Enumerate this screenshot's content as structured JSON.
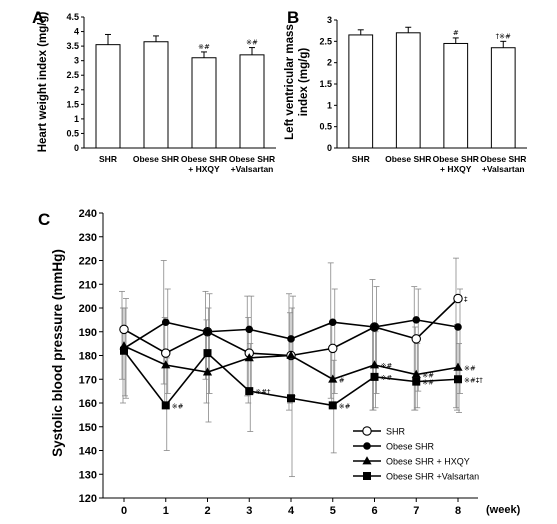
{
  "figure": {
    "panel_a": "A",
    "panel_b": "B",
    "panel_c": "C"
  },
  "chart_data": [
    {
      "type": "bar",
      "ylabel": "Heart weight index (mg/g)",
      "categories": [
        "SHR",
        "Obese SHR",
        "Obese SHR\n+ HXQY",
        "Obese SHR\n+Valsartan"
      ],
      "values": [
        3.55,
        3.65,
        3.1,
        3.2
      ],
      "errors": [
        0.35,
        0.2,
        0.2,
        0.25
      ],
      "annotations": [
        "",
        "",
        "※#",
        "※#"
      ],
      "ylim": [
        0,
        4.5
      ],
      "yticks": [
        "0",
        "0.5",
        "1",
        "1.5",
        "2",
        "2.5",
        "3",
        "3.5",
        "4",
        "4.5"
      ]
    },
    {
      "type": "bar",
      "ylabel": "Left ventricular mass\nindex (mg/g)",
      "categories": [
        "SHR",
        "Obese SHR",
        "Obese SHR\n+ HXQY",
        "Obese SHR\n+Valsartan"
      ],
      "values": [
        2.65,
        2.7,
        2.45,
        2.35
      ],
      "errors": [
        0.12,
        0.13,
        0.13,
        0.15
      ],
      "annotations": [
        "",
        "",
        "#",
        "†※#"
      ],
      "ylim": [
        0,
        3
      ],
      "yticks": [
        "0",
        "0.5",
        "1",
        "1.5",
        "2",
        "2.5",
        "3"
      ]
    },
    {
      "type": "line",
      "ylabel": "Systolic blood pressure (mmHg)",
      "xlabel": "(week)",
      "x": [
        0,
        1,
        2,
        3,
        4,
        5,
        6,
        7,
        8
      ],
      "ylim": [
        120,
        240
      ],
      "yticks": [
        "120",
        "130",
        "140",
        "150",
        "160",
        "170",
        "180",
        "190",
        "200",
        "210",
        "220",
        "230",
        "240"
      ],
      "xticks": [
        "0",
        "1",
        "2",
        "3",
        "4",
        "5",
        "6",
        "7",
        "8"
      ],
      "series": [
        {
          "name": "SHR",
          "marker": "open-circle",
          "values": [
            191,
            181,
            190,
            181,
            180,
            183,
            192,
            187,
            204
          ],
          "err_top": [
            207,
            220,
            207,
            205,
            206,
            219,
            212,
            209,
            221
          ],
          "err_bot": [
            170,
            168,
            170,
            163,
            157,
            162,
            157,
            157,
            158
          ],
          "annotations": [
            "",
            "",
            "",
            "",
            "",
            "",
            "",
            "",
            "‡"
          ]
        },
        {
          "name": "Obese SHR",
          "marker": "filled-circle",
          "values": [
            183,
            194,
            190,
            191,
            187,
            194,
            192,
            195,
            192
          ],
          "err_top": [
            204,
            208,
            206,
            205,
            205,
            208,
            209,
            208,
            208
          ],
          "err_bot": [
            162,
            164,
            164,
            164,
            163,
            164,
            164,
            165,
            164
          ],
          "annotations": [
            "",
            "",
            "",
            "",
            "",
            "",
            "",
            "",
            ""
          ]
        },
        {
          "name": "Obese SHR + HXQY",
          "marker": "filled-triangle",
          "values": [
            184,
            176,
            173,
            179,
            180,
            170,
            176,
            172,
            175
          ],
          "err_top": [
            200,
            196,
            195,
            196,
            198,
            193,
            193,
            192,
            193
          ],
          "err_bot": [
            160,
            160,
            160,
            160,
            160,
            158,
            157,
            157,
            157
          ],
          "annotations": [
            "",
            "",
            "",
            "",
            "",
            "#",
            "※#",
            "※#",
            "※#"
          ]
        },
        {
          "name": "Obese SHR +Valsartan",
          "marker": "filled-square",
          "values": [
            182,
            159,
            181,
            165,
            162,
            159,
            171,
            169,
            170
          ],
          "err_top": [
            200,
            179,
            200,
            185,
            200,
            178,
            190,
            185,
            185
          ],
          "err_bot": [
            163,
            140,
            152,
            148,
            129,
            139,
            158,
            158,
            156
          ],
          "annotations": [
            "",
            "※#",
            "",
            "※#†",
            "",
            "※#",
            "※#",
            "※#",
            "※#‡†"
          ]
        }
      ],
      "legend_position": "lower-right"
    }
  ]
}
